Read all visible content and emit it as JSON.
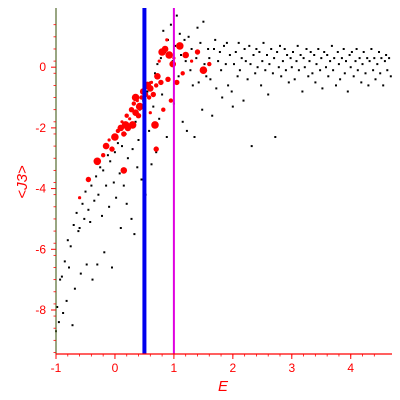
{
  "chart_data": {
    "type": "scatter",
    "xlabel": "E",
    "ylabel": "<J3>",
    "xlim": [
      -1,
      4.7
    ],
    "ylim": [
      -9.45,
      1.95
    ],
    "x_ticks": [
      -1,
      0,
      1,
      2,
      3,
      4
    ],
    "y_ticks": [
      0,
      -2,
      -4,
      -6,
      -8
    ],
    "x_tick_labels": [
      "-1",
      "0",
      "1",
      "2",
      "3",
      "4"
    ],
    "y_tick_labels": [
      "0",
      "-2",
      "-4",
      "-6",
      "-8"
    ],
    "vertical_lines": [
      {
        "x": 0.5,
        "color": "#0000ee"
      },
      {
        "x": 1.0,
        "color": "#e000e0"
      }
    ],
    "colors": {
      "axis": "#ff0000",
      "left_edge": "#556b2f",
      "tick_text": "#ff0000",
      "black_points": "#000000",
      "red_points": "#ff0000"
    },
    "series": [
      {
        "color": "#000000",
        "marker": "dot",
        "points": [
          [
            -1.0,
            -8.7
          ],
          [
            -0.98,
            -7.9
          ],
          [
            -0.95,
            -8.4
          ],
          [
            -0.93,
            -7.0
          ],
          [
            -0.9,
            -6.9
          ],
          [
            -0.88,
            -8.1
          ],
          [
            -0.85,
            -6.4
          ],
          [
            -0.82,
            -7.7
          ],
          [
            -0.8,
            -5.7
          ],
          [
            -0.78,
            -6.6
          ],
          [
            -0.75,
            -5.9
          ],
          [
            -0.72,
            -8.5
          ],
          [
            -0.7,
            -5.2
          ],
          [
            -0.68,
            -7.3
          ],
          [
            -0.65,
            -4.8
          ],
          [
            -0.62,
            -5.4
          ],
          [
            -0.6,
            -5.3
          ],
          [
            -0.58,
            -6.8
          ],
          [
            -0.55,
            -4.5
          ],
          [
            -0.52,
            -5.0
          ],
          [
            -0.5,
            -4.1
          ],
          [
            -0.48,
            -6.5
          ],
          [
            -0.45,
            -4.7
          ],
          [
            -0.42,
            -5.1
          ],
          [
            -0.4,
            -3.9
          ],
          [
            -0.38,
            -7.0
          ],
          [
            -0.35,
            -4.4
          ],
          [
            -0.32,
            -3.6
          ],
          [
            -0.3,
            -6.5
          ],
          [
            -0.28,
            -4.2
          ],
          [
            -0.25,
            -3.3
          ],
          [
            -0.22,
            -4.9
          ],
          [
            -0.2,
            -3.4
          ],
          [
            -0.18,
            -6.1
          ],
          [
            -0.15,
            -3.9
          ],
          [
            -0.12,
            -2.9
          ],
          [
            -0.1,
            -4.6
          ],
          [
            -0.08,
            -3.1
          ],
          [
            -0.05,
            -6.6
          ],
          [
            -0.02,
            -3.8
          ],
          [
            0.0,
            -2.8
          ],
          [
            0.02,
            -4.3
          ],
          [
            0.05,
            -2.5
          ],
          [
            0.08,
            -3.5
          ],
          [
            0.1,
            -5.3
          ],
          [
            0.12,
            -2.6
          ],
          [
            0.15,
            -3.9
          ],
          [
            0.18,
            -2.2
          ],
          [
            0.2,
            -4.5
          ],
          [
            0.22,
            -3.0
          ],
          [
            0.25,
            -2.0
          ],
          [
            0.28,
            -5.0
          ],
          [
            0.3,
            -2.7
          ],
          [
            0.33,
            -5.5
          ],
          [
            0.35,
            -1.8
          ],
          [
            0.38,
            -3.3
          ],
          [
            0.4,
            -2.4
          ],
          [
            0.42,
            -1.4
          ],
          [
            0.45,
            -3.7
          ],
          [
            0.48,
            -1.1
          ],
          [
            0.5,
            -2.9
          ],
          [
            0.52,
            -4.2
          ],
          [
            0.55,
            -0.8
          ],
          [
            0.58,
            -2.1
          ],
          [
            0.6,
            -0.5
          ],
          [
            0.62,
            -3.2
          ],
          [
            0.65,
            -1.3
          ],
          [
            0.68,
            -0.2
          ],
          [
            0.7,
            -2.8
          ],
          [
            0.72,
            0.1
          ],
          [
            0.75,
            -1.7
          ],
          [
            0.78,
            0.3
          ],
          [
            0.8,
            -0.9
          ],
          [
            0.82,
            1.2
          ],
          [
            0.85,
            0.5
          ],
          [
            0.88,
            -2.3
          ],
          [
            0.9,
            0.9
          ],
          [
            0.92,
            -0.4
          ],
          [
            0.95,
            1.4
          ],
          [
            0.98,
            0.2
          ],
          [
            1.0,
            -1.2
          ],
          [
            1.02,
            0.7
          ],
          [
            1.05,
            1.7
          ],
          [
            1.08,
            -0.3
          ],
          [
            1.1,
            1.1
          ],
          [
            1.12,
            0.4
          ],
          [
            1.15,
            -1.8
          ],
          [
            1.18,
            0.9
          ],
          [
            1.2,
            0.2
          ],
          [
            1.22,
            -2.1
          ],
          [
            1.25,
            1.0
          ],
          [
            1.28,
            -0.1
          ],
          [
            1.3,
            0.6
          ],
          [
            1.32,
            -0.6
          ],
          [
            1.35,
            -2.3
          ],
          [
            1.38,
            0.3
          ],
          [
            1.4,
            1.3
          ],
          [
            1.42,
            -0.5
          ],
          [
            1.45,
            0.8
          ],
          [
            1.48,
            -1.4
          ],
          [
            1.5,
            1.5
          ],
          [
            1.52,
            0.1
          ],
          [
            1.55,
            -0.3
          ],
          [
            1.58,
            0.6
          ],
          [
            1.6,
            0.3
          ],
          [
            1.62,
            -0.4
          ],
          [
            1.65,
            -1.6
          ],
          [
            1.68,
            0.6
          ],
          [
            1.7,
            0.9
          ],
          [
            1.72,
            -0.7
          ],
          [
            1.75,
            0.2
          ],
          [
            1.78,
            0.5
          ],
          [
            1.8,
            -0.1
          ],
          [
            1.82,
            -1.0
          ],
          [
            1.85,
            0.7
          ],
          [
            1.88,
            0.1
          ],
          [
            1.9,
            0.8
          ],
          [
            1.92,
            -0.6
          ],
          [
            1.95,
            0.4
          ],
          [
            1.98,
            -0.8
          ],
          [
            2.0,
            -1.3
          ],
          [
            2.02,
            0.1
          ],
          [
            2.05,
            0.5
          ],
          [
            2.08,
            -0.3
          ],
          [
            2.1,
            0.8
          ],
          [
            2.12,
            -0.1
          ],
          [
            2.15,
            0.3
          ],
          [
            2.18,
            -1.1
          ],
          [
            2.2,
            0.6
          ],
          [
            2.22,
            0.2
          ],
          [
            2.25,
            -0.4
          ],
          [
            2.28,
            0.7
          ],
          [
            2.3,
            0.1
          ],
          [
            2.32,
            -2.6
          ],
          [
            2.35,
            0.4
          ],
          [
            2.38,
            -0.2
          ],
          [
            2.4,
            0.6
          ],
          [
            2.42,
            0.0
          ],
          [
            2.45,
            0.5
          ],
          [
            2.48,
            -0.6
          ],
          [
            2.5,
            0.2
          ],
          [
            2.52,
            0.8
          ],
          [
            2.55,
            -0.1
          ],
          [
            2.58,
            0.4
          ],
          [
            2.6,
            -0.9
          ],
          [
            2.62,
            0.1
          ],
          [
            2.65,
            0.6
          ],
          [
            2.68,
            -0.2
          ],
          [
            2.7,
            0.3
          ],
          [
            2.72,
            -2.3
          ],
          [
            2.75,
            0.5
          ],
          [
            2.78,
            0.0
          ],
          [
            2.8,
            0.7
          ],
          [
            2.82,
            -0.3
          ],
          [
            2.85,
            0.2
          ],
          [
            2.88,
            0.6
          ],
          [
            2.9,
            -0.1
          ],
          [
            2.92,
            0.4
          ],
          [
            2.95,
            -0.5
          ],
          [
            2.98,
            0.3
          ],
          [
            3.0,
            0.0
          ],
          [
            3.02,
            0.5
          ],
          [
            3.05,
            -0.4
          ],
          [
            3.08,
            0.2
          ],
          [
            3.1,
            0.7
          ],
          [
            3.12,
            -0.1
          ],
          [
            3.15,
            0.4
          ],
          [
            3.18,
            -0.8
          ],
          [
            3.2,
            0.3
          ],
          [
            3.22,
            0.0
          ],
          [
            3.25,
            0.6
          ],
          [
            3.28,
            -0.3
          ],
          [
            3.3,
            0.2
          ],
          [
            3.32,
            0.5
          ],
          [
            3.35,
            -0.2
          ],
          [
            3.38,
            0.4
          ],
          [
            3.4,
            -0.5
          ],
          [
            3.42,
            0.1
          ],
          [
            3.45,
            0.6
          ],
          [
            3.48,
            -0.1
          ],
          [
            3.5,
            0.3
          ],
          [
            3.52,
            -0.7
          ],
          [
            3.55,
            0.5
          ],
          [
            3.58,
            0.0
          ],
          [
            3.6,
            0.4
          ],
          [
            3.62,
            -0.3
          ],
          [
            3.65,
            0.2
          ],
          [
            3.68,
            0.7
          ],
          [
            3.7,
            -0.1
          ],
          [
            3.72,
            0.3
          ],
          [
            3.75,
            -0.6
          ],
          [
            3.78,
            0.5
          ],
          [
            3.8,
            0.1
          ],
          [
            3.82,
            -0.4
          ],
          [
            3.85,
            0.3
          ],
          [
            3.88,
            0.6
          ],
          [
            3.9,
            -0.2
          ],
          [
            3.92,
            0.2
          ],
          [
            3.95,
            -0.8
          ],
          [
            3.98,
            0.4
          ],
          [
            4.0,
            0.0
          ],
          [
            4.02,
            0.5
          ],
          [
            4.05,
            -0.3
          ],
          [
            4.08,
            0.2
          ],
          [
            4.1,
            0.6
          ],
          [
            4.12,
            -0.1
          ],
          [
            4.15,
            0.3
          ],
          [
            4.18,
            -0.5
          ],
          [
            4.2,
            0.1
          ],
          [
            4.22,
            0.5
          ],
          [
            4.25,
            -0.2
          ],
          [
            4.28,
            0.3
          ],
          [
            4.3,
            -0.6
          ],
          [
            4.32,
            0.2
          ],
          [
            4.35,
            0.6
          ],
          [
            4.38,
            -0.1
          ],
          [
            4.4,
            0.3
          ],
          [
            4.42,
            -0.4
          ],
          [
            4.45,
            0.1
          ],
          [
            4.48,
            0.5
          ],
          [
            4.5,
            -0.2
          ],
          [
            4.52,
            0.3
          ],
          [
            4.55,
            -0.6
          ],
          [
            4.58,
            0.2
          ],
          [
            4.6,
            0.4
          ],
          [
            4.62,
            -0.1
          ],
          [
            4.65,
            0.3
          ],
          [
            4.68,
            -0.3
          ]
        ]
      },
      {
        "color": "#ff0000",
        "marker": "circle",
        "points": [
          [
            -0.6,
            -4.3
          ],
          [
            -0.45,
            -3.7
          ],
          [
            -0.3,
            -3.1
          ],
          [
            -0.2,
            -2.9
          ],
          [
            -0.15,
            -2.6
          ],
          [
            -0.1,
            -2.4
          ],
          [
            -0.05,
            -2.7
          ],
          [
            0.0,
            -2.3
          ],
          [
            0.05,
            -2.1
          ],
          [
            0.1,
            -2.0
          ],
          [
            0.12,
            -1.8
          ],
          [
            0.15,
            -2.2
          ],
          [
            0.18,
            -1.9
          ],
          [
            0.2,
            -1.6
          ],
          [
            0.22,
            -2.0
          ],
          [
            0.25,
            -1.7
          ],
          [
            0.28,
            -1.4
          ],
          [
            0.3,
            -1.9
          ],
          [
            0.32,
            -1.2
          ],
          [
            0.35,
            -1.5
          ],
          [
            0.38,
            -1.1
          ],
          [
            0.4,
            -1.6
          ],
          [
            0.42,
            -1.3
          ],
          [
            0.45,
            -1.0
          ],
          [
            0.48,
            -0.8
          ],
          [
            0.5,
            -1.2
          ],
          [
            0.52,
            -0.9
          ],
          [
            0.55,
            -0.6
          ],
          [
            0.58,
            -1.0
          ],
          [
            0.6,
            -0.7
          ],
          [
            0.62,
            -0.5
          ],
          [
            0.65,
            -0.9
          ],
          [
            0.68,
            -1.9
          ],
          [
            0.7,
            -0.6
          ],
          [
            0.72,
            -0.3
          ],
          [
            0.75,
            0.2
          ],
          [
            0.78,
            -0.5
          ],
          [
            0.8,
            0.5
          ],
          [
            0.82,
            -1.4
          ],
          [
            0.85,
            0.6
          ],
          [
            0.88,
            0.9
          ],
          [
            0.9,
            -0.4
          ],
          [
            0.92,
            0.4
          ],
          [
            0.95,
            -1.1
          ],
          [
            0.98,
            0.1
          ],
          [
            1.0,
            0.3
          ],
          [
            1.05,
            -0.5
          ],
          [
            1.1,
            0.7
          ],
          [
            1.15,
            -0.2
          ],
          [
            1.2,
            0.4
          ],
          [
            1.3,
            0.2
          ],
          [
            1.4,
            0.5
          ],
          [
            1.5,
            -0.1
          ],
          [
            1.6,
            0.1
          ],
          [
            0.15,
            -3.4
          ],
          [
            0.6,
            -1.5
          ],
          [
            0.7,
            -2.7
          ],
          [
            0.35,
            -1.0
          ]
        ]
      }
    ]
  }
}
